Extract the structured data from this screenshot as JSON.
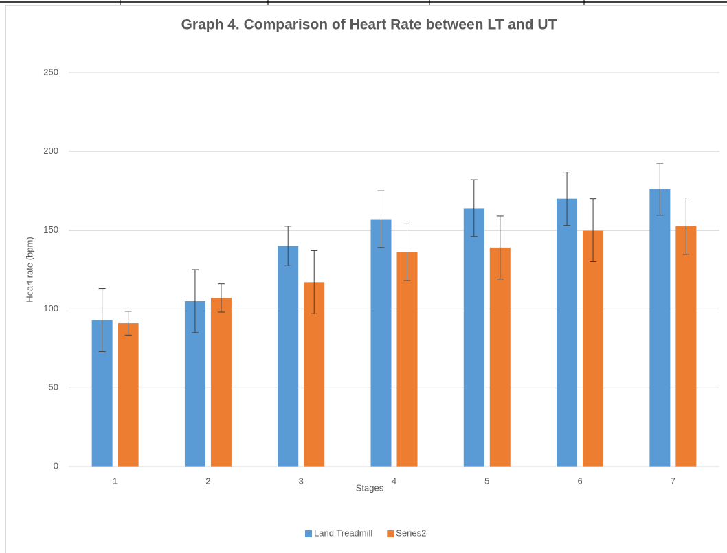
{
  "chart_data": {
    "type": "bar",
    "title": "Graph 4. Comparison of Heart Rate between LT and UT",
    "x_label": "Stages",
    "y_label": "Heart rate (bpm)",
    "categories": [
      "1",
      "2",
      "3",
      "4",
      "5",
      "6",
      "7"
    ],
    "series": [
      {
        "name": "Land Treadmill",
        "color": "#5b9bd5",
        "values": [
          93,
          105,
          140,
          157,
          164,
          170,
          176
        ],
        "errors": [
          20,
          20,
          12.5,
          18,
          18,
          17,
          16.5
        ]
      },
      {
        "name": "Series2",
        "color": "#ed7d31",
        "values": [
          91,
          107,
          117,
          136,
          139,
          150,
          152.5
        ],
        "errors": [
          7.5,
          9,
          20,
          18,
          20,
          20,
          18
        ]
      }
    ],
    "ylim": [
      0,
      250
    ],
    "yticks": [
      0,
      50,
      100,
      150,
      200,
      250
    ],
    "grid": true,
    "legend": "bottom"
  }
}
